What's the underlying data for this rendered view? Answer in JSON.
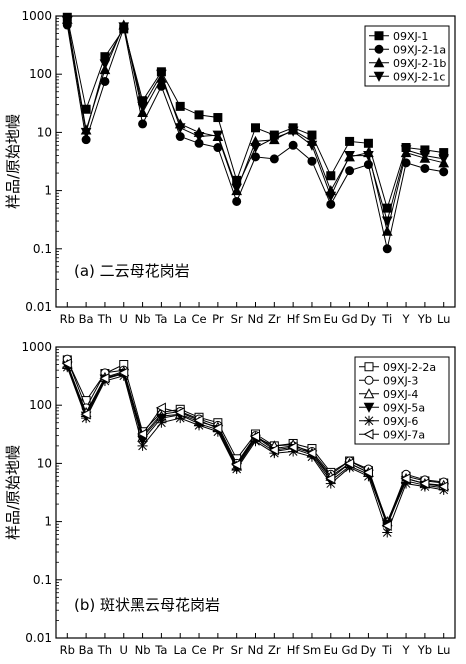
{
  "chart_data": [
    {
      "type": "line",
      "panel_label": "(a) 二云母花岗岩",
      "ylabel": "样品/原始地幔",
      "yscale": "log",
      "ylim": [
        0.01,
        1000
      ],
      "yticks": [
        "0.01",
        "0.1",
        "1",
        "10",
        "100",
        "1000"
      ],
      "categories": [
        "Rb",
        "Ba",
        "Th",
        "U",
        "Nb",
        "Ta",
        "La",
        "Ce",
        "Pr",
        "Sr",
        "Nd",
        "Zr",
        "Hf",
        "Sm",
        "Eu",
        "Gd",
        "Dy",
        "Ti",
        "Y",
        "Yb",
        "Lu"
      ],
      "legend_position": "top-right",
      "series": [
        {
          "name": "09XJ-1",
          "marker": "square-filled",
          "values": [
            950,
            25,
            200,
            600,
            35,
            110,
            28,
            20,
            18,
            1.5,
            12,
            9,
            12,
            9,
            1.8,
            7,
            6.5,
            0.5,
            5.5,
            5,
            4.5
          ]
        },
        {
          "name": "09XJ-2-1a",
          "marker": "circle-filled",
          "values": [
            700,
            7.5,
            75,
            620,
            14,
            62,
            8.5,
            6.5,
            5.5,
            0.65,
            3.8,
            3.5,
            6,
            3.2,
            0.58,
            2.2,
            2.8,
            0.1,
            3,
            2.4,
            2.1
          ]
        },
        {
          "name": "09XJ-2-1b",
          "marker": "triangle-up-filled",
          "values": [
            880,
            11,
            120,
            700,
            22,
            85,
            14,
            10,
            8.5,
            1.0,
            7,
            7.5,
            11,
            7,
            1.0,
            3.8,
            4.5,
            0.2,
            4.5,
            3.6,
            3.0
          ]
        },
        {
          "name": "09XJ-2-1c",
          "marker": "triangle-down-filled",
          "values": [
            820,
            10,
            150,
            650,
            28,
            100,
            12,
            8.5,
            9,
            1.1,
            5.5,
            8,
            10.5,
            6,
            0.8,
            4,
            4,
            0.3,
            5,
            4,
            3.5
          ]
        }
      ]
    },
    {
      "type": "line",
      "panel_label": "(b) 斑状黑云母花岗岩",
      "ylabel": "样品/原始地幔",
      "yscale": "log",
      "ylim": [
        0.01,
        1000
      ],
      "yticks": [
        "0.01",
        "0.1",
        "1",
        "10",
        "100",
        "1000"
      ],
      "categories": [
        "Rb",
        "Ba",
        "Th",
        "U",
        "Nb",
        "Ta",
        "La",
        "Ce",
        "Pr",
        "Sr",
        "Nd",
        "Zr",
        "Hf",
        "Sm",
        "Eu",
        "Gd",
        "Dy",
        "Ti",
        "Y",
        "Yb",
        "Lu"
      ],
      "legend_position": "top-right",
      "series": [
        {
          "name": "09XJ-2-2a",
          "marker": "square-open",
          "values": [
            600,
            120,
            350,
            500,
            35,
            75,
            85,
            62,
            50,
            12,
            32,
            20,
            22,
            18,
            7,
            11,
            7.5,
            0.95,
            6,
            5,
            4.6
          ]
        },
        {
          "name": "09XJ-3",
          "marker": "circle-open",
          "values": [
            620,
            90,
            360,
            400,
            30,
            70,
            78,
            58,
            45,
            10,
            30,
            18,
            20,
            16,
            6.5,
            11,
            8,
            0.95,
            6.5,
            5.2,
            4.8
          ]
        },
        {
          "name": "09XJ-4",
          "marker": "triangle-up-open",
          "values": [
            500,
            75,
            300,
            380,
            28,
            65,
            70,
            52,
            42,
            9,
            28,
            20,
            21,
            15,
            6,
            10,
            7,
            1.0,
            5.5,
            4.5,
            4.2
          ]
        },
        {
          "name": "09XJ-5a",
          "marker": "triangle-down-filled",
          "values": [
            470,
            65,
            280,
            350,
            25,
            60,
            68,
            48,
            38,
            8.5,
            26,
            16,
            18,
            14,
            5,
            9,
            6.5,
            0.9,
            5,
            4.2,
            3.8
          ]
        },
        {
          "name": "09XJ-6",
          "marker": "star",
          "values": [
            450,
            60,
            260,
            320,
            20,
            50,
            60,
            45,
            35,
            8,
            24,
            15,
            16,
            13,
            4.5,
            8.5,
            6,
            0.65,
            4.5,
            4,
            3.5
          ]
        },
        {
          "name": "09XJ-7a",
          "marker": "triangle-left-open",
          "values": [
            520,
            70,
            290,
            360,
            32,
            90,
            75,
            55,
            40,
            9.5,
            29,
            17,
            19,
            15,
            5.5,
            10,
            7,
            0.85,
            5.5,
            4.5,
            4
          ]
        }
      ]
    }
  ]
}
